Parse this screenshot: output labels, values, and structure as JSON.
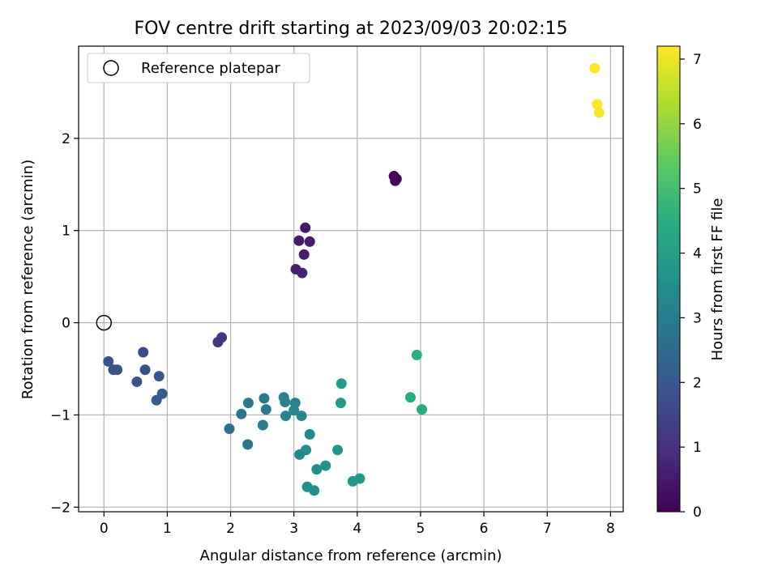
{
  "chart_data": {
    "type": "scatter",
    "title": "FOV centre drift starting at 2023/09/03 20:02:15",
    "xlabel": "Angular distance from reference (arcmin)",
    "ylabel": "Rotation from reference (arcmin)",
    "xlim": [
      -0.4,
      8.2
    ],
    "ylim": [
      -2.05,
      3.0
    ],
    "xticks": [
      "0",
      "1",
      "2",
      "3",
      "4",
      "5",
      "6",
      "7",
      "8"
    ],
    "yticks": [
      "−2",
      "−1",
      "0",
      "1",
      "2"
    ],
    "grid": true,
    "legend": {
      "placement": "top-left",
      "entries": [
        "Reference platepar"
      ]
    },
    "reference_point": {
      "x": 0,
      "y": 0
    },
    "colorbar": {
      "label": "Hours from first FF file",
      "range": [
        0,
        7.2
      ],
      "ticks": [
        "0",
        "1",
        "2",
        "3",
        "4",
        "5",
        "6",
        "7"
      ],
      "colormap": "viridis"
    },
    "points": [
      {
        "x": 4.58,
        "y": 1.59,
        "h": 0.05
      },
      {
        "x": 4.62,
        "y": 1.56,
        "h": 0.1
      },
      {
        "x": 4.6,
        "y": 1.54,
        "h": 0.15
      },
      {
        "x": 3.18,
        "y": 1.03,
        "h": 0.45
      },
      {
        "x": 3.08,
        "y": 0.89,
        "h": 0.5
      },
      {
        "x": 3.25,
        "y": 0.88,
        "h": 0.55
      },
      {
        "x": 3.16,
        "y": 0.74,
        "h": 0.6
      },
      {
        "x": 3.03,
        "y": 0.58,
        "h": 0.65
      },
      {
        "x": 3.13,
        "y": 0.54,
        "h": 0.7
      },
      {
        "x": 1.86,
        "y": -0.16,
        "h": 1.1
      },
      {
        "x": 1.8,
        "y": -0.21,
        "h": 1.15
      },
      {
        "x": 0.62,
        "y": -0.32,
        "h": 1.6
      },
      {
        "x": 0.07,
        "y": -0.42,
        "h": 1.8
      },
      {
        "x": 0.65,
        "y": -0.51,
        "h": 1.75
      },
      {
        "x": 0.15,
        "y": -0.51,
        "h": 1.85
      },
      {
        "x": 0.21,
        "y": -0.51,
        "h": 1.85
      },
      {
        "x": 0.87,
        "y": -0.58,
        "h": 1.95
      },
      {
        "x": 0.52,
        "y": -0.64,
        "h": 1.8
      },
      {
        "x": 0.92,
        "y": -0.77,
        "h": 2.0
      },
      {
        "x": 0.83,
        "y": -0.84,
        "h": 2.1
      },
      {
        "x": 2.53,
        "y": -0.82,
        "h": 3.0
      },
      {
        "x": 2.84,
        "y": -0.81,
        "h": 3.1
      },
      {
        "x": 2.86,
        "y": -0.86,
        "h": 3.15
      },
      {
        "x": 2.28,
        "y": -0.87,
        "h": 2.9
      },
      {
        "x": 3.02,
        "y": -0.87,
        "h": 3.2
      },
      {
        "x": 2.56,
        "y": -0.94,
        "h": 3.0
      },
      {
        "x": 3.0,
        "y": -0.95,
        "h": 3.25
      },
      {
        "x": 2.17,
        "y": -0.99,
        "h": 2.8
      },
      {
        "x": 2.87,
        "y": -1.01,
        "h": 3.15
      },
      {
        "x": 3.12,
        "y": -1.01,
        "h": 3.3
      },
      {
        "x": 2.51,
        "y": -1.11,
        "h": 2.95
      },
      {
        "x": 1.98,
        "y": -1.15,
        "h": 2.7
      },
      {
        "x": 3.25,
        "y": -1.21,
        "h": 3.4
      },
      {
        "x": 2.27,
        "y": -1.32,
        "h": 2.85
      },
      {
        "x": 3.19,
        "y": -1.38,
        "h": 3.45
      },
      {
        "x": 3.69,
        "y": -1.38,
        "h": 3.7
      },
      {
        "x": 3.09,
        "y": -1.43,
        "h": 3.4
      },
      {
        "x": 3.5,
        "y": -1.55,
        "h": 3.6
      },
      {
        "x": 3.36,
        "y": -1.59,
        "h": 3.55
      },
      {
        "x": 3.21,
        "y": -1.78,
        "h": 3.5
      },
      {
        "x": 3.32,
        "y": -1.82,
        "h": 3.5
      },
      {
        "x": 3.93,
        "y": -1.72,
        "h": 3.8
      },
      {
        "x": 4.04,
        "y": -1.69,
        "h": 3.85
      },
      {
        "x": 3.75,
        "y": -0.66,
        "h": 3.9
      },
      {
        "x": 3.74,
        "y": -0.87,
        "h": 3.85
      },
      {
        "x": 4.94,
        "y": -0.35,
        "h": 4.5
      },
      {
        "x": 4.84,
        "y": -0.81,
        "h": 4.45
      },
      {
        "x": 5.02,
        "y": -0.94,
        "h": 4.4
      },
      {
        "x": 7.75,
        "y": 2.76,
        "h": 7.2
      },
      {
        "x": 7.79,
        "y": 2.37,
        "h": 7.15
      },
      {
        "x": 7.82,
        "y": 2.28,
        "h": 7.1
      }
    ]
  }
}
